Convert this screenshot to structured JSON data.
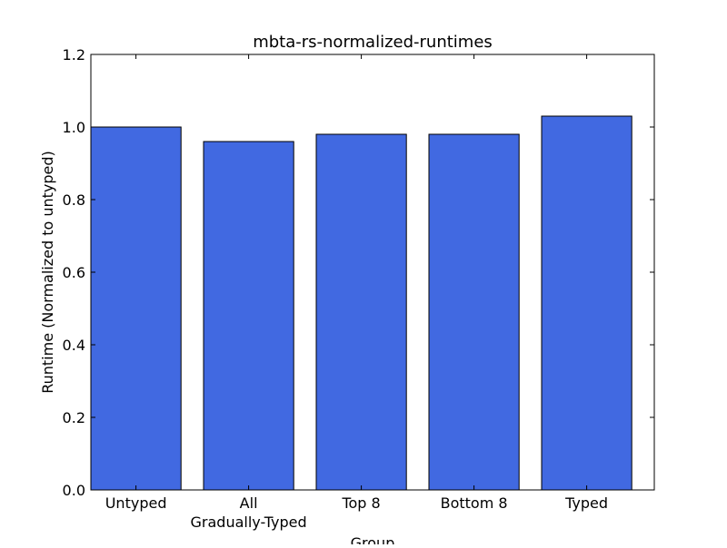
{
  "chart_data": {
    "type": "bar",
    "title": "mbta-rs-normalized-runtimes",
    "xlabel": "Group",
    "ylabel": "Runtime (Normalized to untyped)",
    "categories": [
      "Untyped",
      "All\nGradually-Typed",
      "Top 8",
      "Bottom 8",
      "Typed"
    ],
    "values": [
      1.0,
      0.96,
      0.98,
      0.98,
      1.03
    ],
    "ylim": [
      0,
      1.2
    ],
    "yticks": [
      "0.0",
      "0.2",
      "0.4",
      "0.6",
      "0.8",
      "1.0",
      "1.2"
    ],
    "grid": false,
    "legend": "none",
    "bar_color": "#4169e1",
    "edge_color": "#000000"
  }
}
